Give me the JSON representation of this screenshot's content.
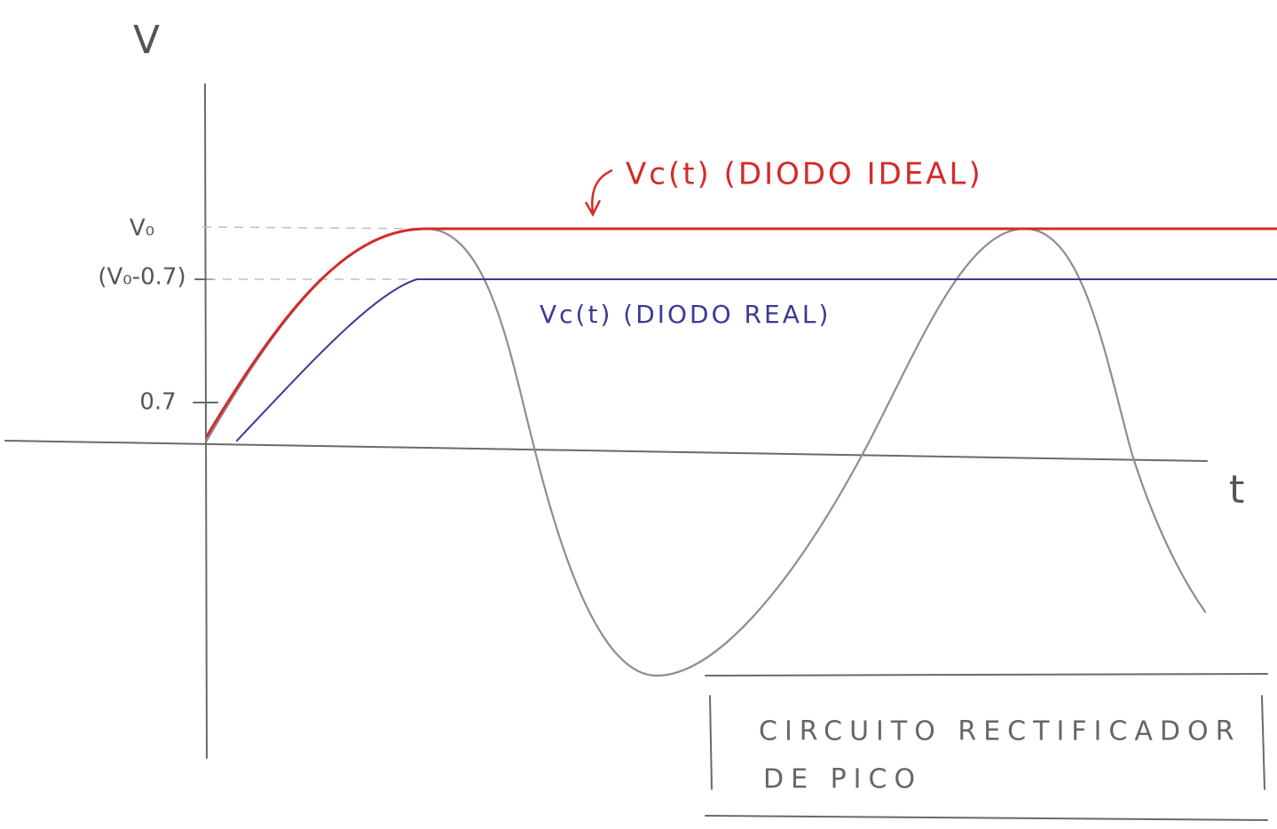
{
  "axes": {
    "y_label": "V",
    "x_label": "t"
  },
  "ticks": {
    "peak": "V₀",
    "peak_minus_drop": "(V₀-0.7)",
    "drop": "0.7"
  },
  "curves": {
    "ideal": "Vc(t) (DIODO IDEAL)",
    "real": "Vc(t) (DIODO REAL)"
  },
  "caption": {
    "line1": "CIRCUITO RECTIFICADOR",
    "line2": "DE PICO"
  }
}
